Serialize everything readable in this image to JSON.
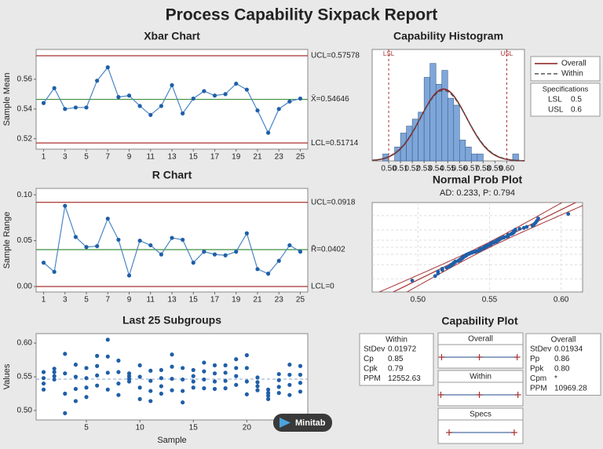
{
  "title": "Process Capability Sixpack Report",
  "badge": "Minitab",
  "chart_data": [
    {
      "type": "line",
      "title": "Xbar Chart",
      "ylabel": "Sample Mean",
      "x": [
        1,
        2,
        3,
        4,
        5,
        6,
        7,
        8,
        9,
        10,
        11,
        12,
        13,
        14,
        15,
        16,
        17,
        18,
        19,
        20,
        21,
        22,
        23,
        24,
        25
      ],
      "values": [
        0.544,
        0.554,
        0.54,
        0.541,
        0.541,
        0.559,
        0.568,
        0.548,
        0.549,
        0.542,
        0.536,
        0.542,
        0.556,
        0.537,
        0.547,
        0.552,
        0.549,
        0.55,
        0.557,
        0.553,
        0.539,
        0.524,
        0.54,
        0.545,
        0.547
      ],
      "xlim": [
        0.3,
        25.7
      ],
      "xticks": [
        1,
        3,
        5,
        7,
        9,
        11,
        13,
        15,
        17,
        19,
        21,
        23,
        25
      ],
      "ylim": [
        0.513,
        0.58
      ],
      "yticks": [
        0.52,
        0.54,
        0.56
      ],
      "line_color": "#4a86c5",
      "marker_color": "#1f5fa8",
      "control_limits": [
        {
          "value": 0.57578,
          "label": "UCL=0.57578",
          "color": "#a83232"
        },
        {
          "value": 0.54646,
          "label": "X̄=0.54646",
          "color": "#3f8f3f"
        },
        {
          "value": 0.51714,
          "label": "LCL=0.51714",
          "color": "#a83232"
        }
      ]
    },
    {
      "type": "line",
      "title": "R Chart",
      "ylabel": "Sample Range",
      "x": [
        1,
        2,
        3,
        4,
        5,
        6,
        7,
        8,
        9,
        10,
        11,
        12,
        13,
        14,
        15,
        16,
        17,
        18,
        19,
        20,
        21,
        22,
        23,
        24,
        25
      ],
      "values": [
        0.026,
        0.016,
        0.088,
        0.054,
        0.043,
        0.044,
        0.074,
        0.051,
        0.012,
        0.05,
        0.045,
        0.035,
        0.053,
        0.051,
        0.026,
        0.038,
        0.035,
        0.034,
        0.038,
        0.058,
        0.019,
        0.014,
        0.028,
        0.045,
        0.038
      ],
      "xlim": [
        0.3,
        25.7
      ],
      "xticks": [
        1,
        3,
        5,
        7,
        9,
        11,
        13,
        15,
        17,
        19,
        21,
        23,
        25
      ],
      "ylim": [
        -0.006,
        0.107
      ],
      "yticks": [
        {
          "value": 0,
          "label": "0.00"
        },
        0.05,
        {
          "value": 0.1,
          "label": "0.10"
        }
      ],
      "line_color": "#4a86c5",
      "marker_color": "#1f5fa8",
      "control_limits": [
        {
          "value": 0.0918,
          "label": "UCL=0.0918",
          "color": "#a83232"
        },
        {
          "value": 0.0402,
          "label": "R̄=0.0402",
          "color": "#3f8f3f"
        },
        {
          "value": 0,
          "label": "LCL=0",
          "color": "#a83232"
        }
      ]
    },
    {
      "type": "scatter",
      "title": "Last 25 Subgroups",
      "ylabel": "Values",
      "xlabel": "Sample",
      "x": [
        1,
        2,
        3,
        4,
        5,
        6,
        7,
        8,
        9,
        10,
        11,
        12,
        13,
        14,
        15,
        16,
        17,
        18,
        19,
        20,
        21,
        22,
        23,
        24,
        25
      ],
      "values": [
        [
          0.531,
          0.548,
          0.557,
          0.54
        ],
        [
          0.546,
          0.557,
          0.562,
          0.551
        ],
        [
          0.496,
          0.555,
          0.584,
          0.525
        ],
        [
          0.514,
          0.55,
          0.568,
          0.532
        ],
        [
          0.52,
          0.548,
          0.563,
          0.534
        ],
        [
          0.537,
          0.566,
          0.581,
          0.552
        ],
        [
          0.531,
          0.58,
          0.605,
          0.556
        ],
        [
          0.523,
          0.557,
          0.574,
          0.54
        ],
        [
          0.543,
          0.551,
          0.555,
          0.547
        ],
        [
          0.517,
          0.55,
          0.567,
          0.534
        ],
        [
          0.514,
          0.544,
          0.559,
          0.529
        ],
        [
          0.525,
          0.548,
          0.56,
          0.536
        ],
        [
          0.53,
          0.565,
          0.583,
          0.547
        ],
        [
          0.512,
          0.546,
          0.563,
          0.529
        ],
        [
          0.534,
          0.551,
          0.56,
          0.543
        ],
        [
          0.533,
          0.558,
          0.571,
          0.546
        ],
        [
          0.532,
          0.555,
          0.567,
          0.543
        ],
        [
          0.533,
          0.556,
          0.567,
          0.544
        ],
        [
          0.538,
          0.563,
          0.576,
          0.551
        ],
        [
          0.524,
          0.563,
          0.582,
          0.543
        ],
        [
          0.53,
          0.542,
          0.549,
          0.536
        ],
        [
          0.517,
          0.526,
          0.531,
          0.522
        ],
        [
          0.526,
          0.545,
          0.554,
          0.535
        ],
        [
          0.523,
          0.553,
          0.568,
          0.538
        ],
        [
          0.528,
          0.553,
          0.566,
          0.541
        ]
      ],
      "xlim": [
        0.3,
        25.7
      ],
      "xticks": [
        5,
        10,
        15,
        20,
        25
      ],
      "ylim": [
        0.486,
        0.614
      ],
      "yticks": [
        {
          "value": 0.5,
          "label": "0.50"
        },
        0.55,
        {
          "value": 0.6,
          "label": "0.60"
        }
      ],
      "color": "#1f5fa8"
    },
    {
      "type": "histogram",
      "title": "Capability Histogram",
      "bins": [
        0.495,
        0.5,
        0.505,
        0.51,
        0.515,
        0.52,
        0.525,
        0.53,
        0.535,
        0.54,
        0.545,
        0.55,
        0.555,
        0.56,
        0.565,
        0.57,
        0.575,
        0.58,
        0.585,
        0.59,
        0.595,
        0.6,
        0.605,
        0.61,
        0.615
      ],
      "counts": [
        1,
        0,
        2,
        4,
        5,
        6,
        7,
        12,
        14,
        11,
        13,
        9,
        8,
        3,
        2,
        1,
        1,
        0,
        0,
        0,
        0,
        0,
        1,
        0
      ],
      "xlim": [
        0.486,
        0.615
      ],
      "xticks": [
        {
          "value": 0.5,
          "label": "0.50"
        },
        0.51,
        0.52,
        0.53,
        0.54,
        0.55,
        0.56,
        0.57,
        0.58,
        0.59,
        {
          "value": 0.6,
          "label": "0.60"
        }
      ],
      "ylim": [
        0,
        16
      ],
      "color": "#7fa6d9",
      "curves": [
        {
          "name": "Overall",
          "color": "#8b1a1a",
          "dash": false
        },
        {
          "name": "Within",
          "color": "#555555",
          "dash": true
        }
      ],
      "specs_title": "Specifications",
      "specs": [
        {
          "name": "LSL",
          "value": 0.5
        },
        {
          "name": "USL",
          "value": 0.6
        }
      ]
    },
    {
      "type": "probability",
      "title": "Normal Prob Plot",
      "subtitle": "AD: 0.233, P: 0.794",
      "xlim": [
        0.468,
        0.615
      ],
      "xticks": [
        {
          "value": 0.5,
          "label": "0.50"
        },
        0.55,
        {
          "value": 0.6,
          "label": "0.60"
        }
      ],
      "color": "#1f5fa8",
      "line_color": "#a83232"
    },
    {
      "type": "capability",
      "title": "Capability Plot",
      "specs_label": "Specs",
      "tables": [
        {
          "title": "Within",
          "rows": [
            {
              "label": "StDev",
              "value": 0.01972
            },
            {
              "label": "Cp",
              "value": 0.85
            },
            {
              "label": "Cpk",
              "value": 0.79
            },
            {
              "label": "PPM",
              "value": 12552.63
            }
          ]
        },
        {
          "title": "Overall",
          "rows": [
            {
              "label": "StDev",
              "value": 0.01934
            },
            {
              "label": "Pp",
              "value": 0.86
            },
            {
              "label": "Ppk",
              "value": "0.80"
            },
            {
              "label": "Cpm",
              "value": "*"
            },
            {
              "label": "PPM",
              "value": 10969.28
            }
          ]
        }
      ]
    }
  ]
}
